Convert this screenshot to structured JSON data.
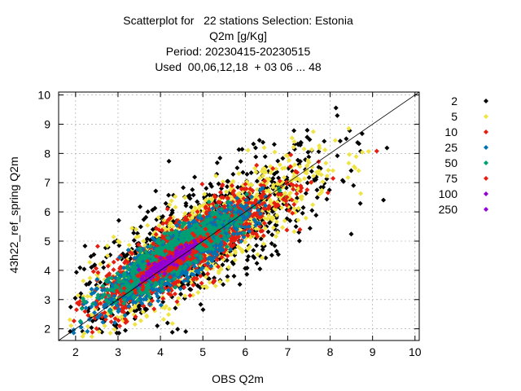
{
  "chart_data": {
    "type": "scatter",
    "title_lines": [
      "Scatterplot for   22 stations Selection: Estonia",
      "Q2m [g/Kg]",
      "Period: 20230415-20230515",
      "Used  00,06,12,18  + 03 06 ... 48"
    ],
    "xlabel": "OBS Q2m",
    "ylabel": "43h22_ref_spring Q2m",
    "xlim": [
      1.6,
      10.1
    ],
    "ylim": [
      1.6,
      10.1
    ],
    "xticks": [
      2,
      3,
      4,
      5,
      6,
      7,
      8,
      9,
      10
    ],
    "yticks": [
      2,
      3,
      4,
      5,
      6,
      7,
      8,
      9,
      10
    ],
    "grid": true,
    "diagonal_line": true,
    "legend_position": "right",
    "series": [
      {
        "name": "2",
        "color": "#000000",
        "center": [
          4.9,
          5.0
        ],
        "spread": 1.6,
        "corr": 0.78,
        "count": 900
      },
      {
        "name": "5",
        "color": "#f0e442",
        "center": [
          4.9,
          5.0
        ],
        "spread": 1.35,
        "corr": 0.84,
        "count": 1100
      },
      {
        "name": "10",
        "color": "#e51e10",
        "center": [
          4.6,
          4.7
        ],
        "spread": 1.05,
        "corr": 0.86,
        "count": 1300
      },
      {
        "name": "25",
        "color": "#0072b2",
        "center": [
          4.3,
          4.4
        ],
        "spread": 0.85,
        "corr": 0.88,
        "count": 1100
      },
      {
        "name": "50",
        "color": "#009e73",
        "center": [
          4.3,
          4.5
        ],
        "spread": 0.7,
        "corr": 0.88,
        "count": 900
      },
      {
        "name": "75",
        "color": "#e51e10",
        "center": [
          4.2,
          4.3
        ],
        "spread": 0.45,
        "corr": 0.9,
        "count": 250
      },
      {
        "name": "100",
        "color": "#9400d3",
        "center": [
          4.2,
          4.3
        ],
        "spread": 0.3,
        "corr": 0.92,
        "count": 120
      },
      {
        "name": "250",
        "color": "#9400d3",
        "center": [
          4.2,
          4.3
        ],
        "spread": 0.15,
        "corr": 0.92,
        "count": 10
      }
    ]
  }
}
